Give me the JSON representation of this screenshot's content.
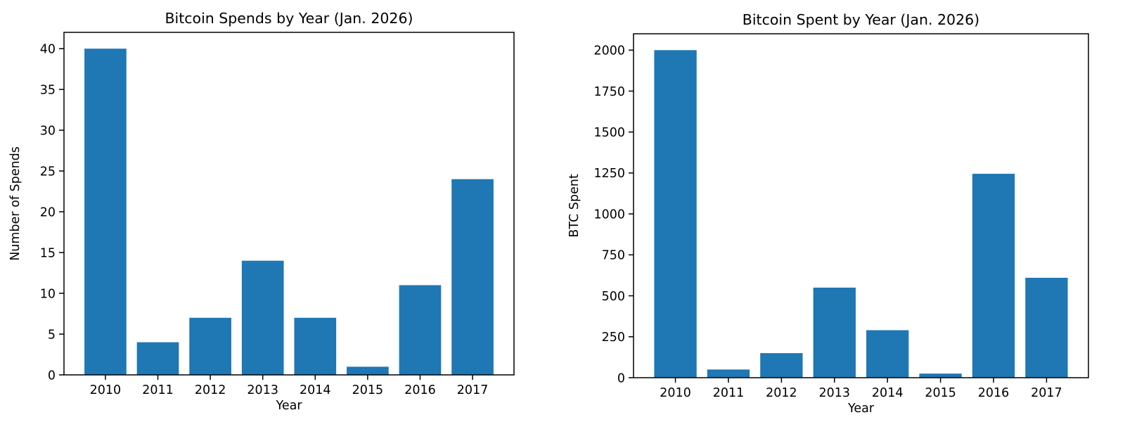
{
  "page": {
    "background": "#ffffff",
    "text_color": "#000000",
    "axis_color": "#000000"
  },
  "chart_data": [
    {
      "type": "bar",
      "title": "Bitcoin Spends by Year (Jan. 2026)",
      "xlabel": "Year",
      "ylabel": "Number of Spends",
      "categories": [
        "2010",
        "2011",
        "2012",
        "2013",
        "2014",
        "2015",
        "2016",
        "2017"
      ],
      "values": [
        40,
        4,
        7,
        14,
        7,
        1,
        11,
        24
      ],
      "ylim": [
        0,
        42
      ],
      "yticks": [
        0,
        5,
        10,
        15,
        20,
        25,
        30,
        35,
        40
      ],
      "bar_color": "#1f77b4",
      "grid": false,
      "legend": "none"
    },
    {
      "type": "bar",
      "title": "Bitcoin Spent by Year (Jan. 2026)",
      "xlabel": "Year",
      "ylabel": "BTC Spent",
      "categories": [
        "2010",
        "2011",
        "2012",
        "2013",
        "2014",
        "2015",
        "2016",
        "2017"
      ],
      "values": [
        2000,
        50,
        150,
        550,
        290,
        25,
        1245,
        610
      ],
      "ylim": [
        0,
        2100
      ],
      "yticks": [
        0,
        250,
        500,
        750,
        1000,
        1250,
        1500,
        1750,
        2000
      ],
      "bar_color": "#1f77b4",
      "grid": false,
      "legend": "none"
    }
  ]
}
